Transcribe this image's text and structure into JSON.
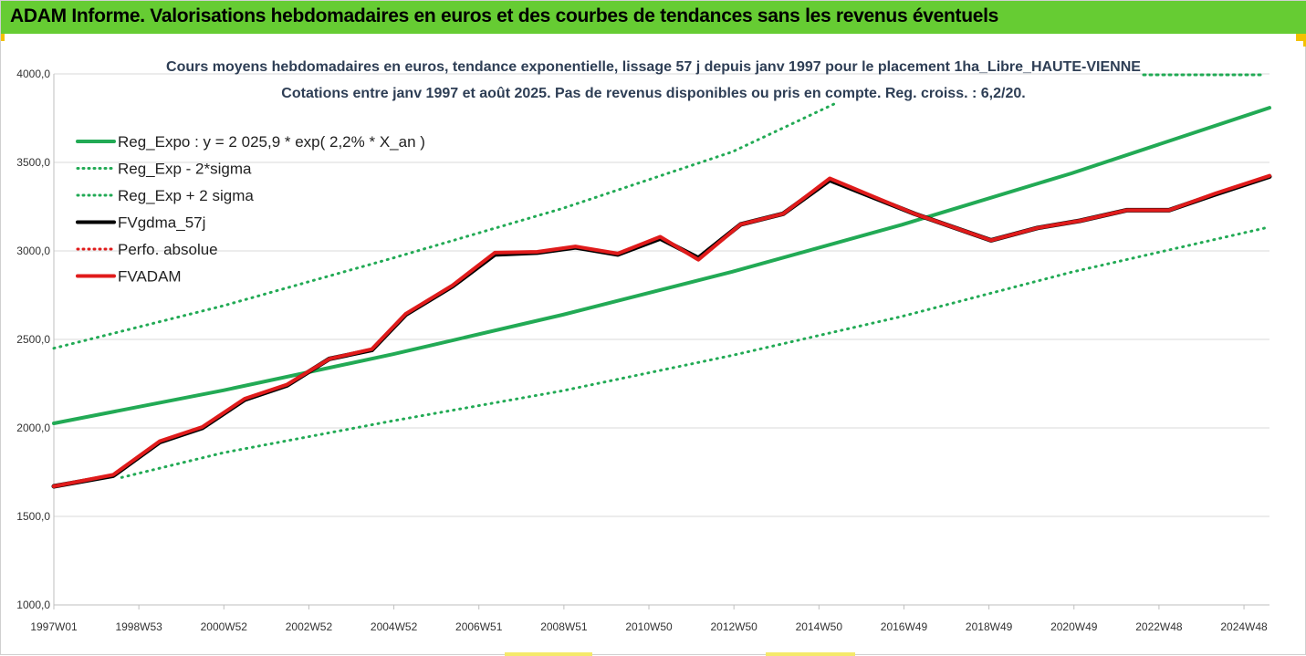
{
  "header": {
    "title": "ADAM Informe. Valorisations hebdomadaires en euros et des courbes de tendances sans les revenus éventuels"
  },
  "chart_data": {
    "type": "line",
    "title": "Cours moyens hebdomadaires en euros, tendance exponentielle, lissage 57 j depuis janv 1997 pour le placement 1ha_Libre_HAUTE-VIENNE",
    "subtitle": "Cotations entre janv 1997 et août 2025.  Pas de revenus disponibles ou pris en compte. Reg. croiss. : 6,2/20.",
    "x_tick_labels": [
      "1997W01",
      "1998W53",
      "2000W52",
      "2002W52",
      "2004W52",
      "2006W51",
      "2008W51",
      "2010W50",
      "2012W50",
      "2014W50",
      "2016W49",
      "2018W49",
      "2020W49",
      "2022W48",
      "2024W48"
    ],
    "y_tick_labels": [
      "1000,0",
      "1500,0",
      "2000,0",
      "2500,0",
      "3000,0",
      "3500,0",
      "4000,0"
    ],
    "ylim": [
      1000,
      4000
    ],
    "xlim": [
      1997.0,
      2025.67
    ],
    "grid": "horizontal",
    "legend_position": "top-left",
    "series": [
      {
        "name": "Reg_Expo : y = 2 025,9 * exp( 2,2% *  X_an )",
        "color": "#22aa55",
        "style": "solid",
        "points": [
          [
            1997.0,
            2025.9
          ],
          [
            2001.0,
            2212.6
          ],
          [
            2005.0,
            2416.5
          ],
          [
            2009.0,
            2639.2
          ],
          [
            2013.0,
            2882.4
          ],
          [
            2017.0,
            3148.1
          ],
          [
            2021.0,
            3438.2
          ],
          [
            2025.67,
            3809.0
          ]
        ]
      },
      {
        "name": "Reg_Exp - 2*sigma",
        "color": "#22aa55",
        "style": "dotted",
        "points": [
          [
            1998.6,
            1720
          ],
          [
            2001.0,
            1860
          ],
          [
            2005.0,
            2040
          ],
          [
            2009.0,
            2210
          ],
          [
            2013.0,
            2410
          ],
          [
            2017.0,
            2630
          ],
          [
            2021.0,
            2880
          ],
          [
            2025.67,
            3135
          ]
        ]
      },
      {
        "name": "Reg_Exp + 2 sigma",
        "color": "#22aa55",
        "style": "dotted",
        "points": [
          [
            1997.0,
            2450
          ],
          [
            2001.0,
            2690
          ],
          [
            2005.0,
            2960
          ],
          [
            2009.0,
            3240
          ],
          [
            2013.0,
            3560
          ],
          [
            2015.4,
            3830
          ]
        ]
      },
      {
        "name": "FVgdma_57j",
        "color": "#000000",
        "style": "solid",
        "points": [
          [
            1997.0,
            1670
          ],
          [
            1998.4,
            1730
          ],
          [
            1999.5,
            1920
          ],
          [
            2000.5,
            2000
          ],
          [
            2001.5,
            2160
          ],
          [
            2002.5,
            2240
          ],
          [
            2003.5,
            2390
          ],
          [
            2004.5,
            2440
          ],
          [
            2005.3,
            2640
          ],
          [
            2006.4,
            2800
          ],
          [
            2007.4,
            2980
          ],
          [
            2008.4,
            2990
          ],
          [
            2009.3,
            3020
          ],
          [
            2010.3,
            2980
          ],
          [
            2011.3,
            3070
          ],
          [
            2012.2,
            2960
          ],
          [
            2013.2,
            3150
          ],
          [
            2014.2,
            3210
          ],
          [
            2015.3,
            3400
          ],
          [
            2017.3,
            3210
          ],
          [
            2019.1,
            3060
          ],
          [
            2020.2,
            3130
          ],
          [
            2021.2,
            3170
          ],
          [
            2022.3,
            3230
          ],
          [
            2023.3,
            3230
          ],
          [
            2024.4,
            3320
          ],
          [
            2025.67,
            3420
          ]
        ]
      },
      {
        "name": "Perfo. absolue",
        "color": "#e01b1b",
        "style": "dotted",
        "points": []
      },
      {
        "name": "FVADAM",
        "color": "#e01b1b",
        "style": "solid",
        "points": [
          [
            1997.0,
            1670
          ],
          [
            1998.4,
            1735
          ],
          [
            1999.5,
            1925
          ],
          [
            2000.5,
            2005
          ],
          [
            2001.5,
            2165
          ],
          [
            2002.5,
            2245
          ],
          [
            2003.5,
            2390
          ],
          [
            2004.5,
            2445
          ],
          [
            2005.3,
            2645
          ],
          [
            2006.4,
            2805
          ],
          [
            2007.4,
            2990
          ],
          [
            2008.4,
            2995
          ],
          [
            2009.3,
            3025
          ],
          [
            2010.3,
            2985
          ],
          [
            2011.3,
            3080
          ],
          [
            2012.2,
            2950
          ],
          [
            2013.2,
            3150
          ],
          [
            2014.2,
            3210
          ],
          [
            2015.3,
            3410
          ],
          [
            2017.3,
            3210
          ],
          [
            2019.1,
            3060
          ],
          [
            2020.2,
            3130
          ],
          [
            2021.2,
            3170
          ],
          [
            2022.3,
            3230
          ],
          [
            2023.3,
            3230
          ],
          [
            2024.4,
            3325
          ],
          [
            2025.67,
            3425
          ]
        ]
      }
    ]
  }
}
